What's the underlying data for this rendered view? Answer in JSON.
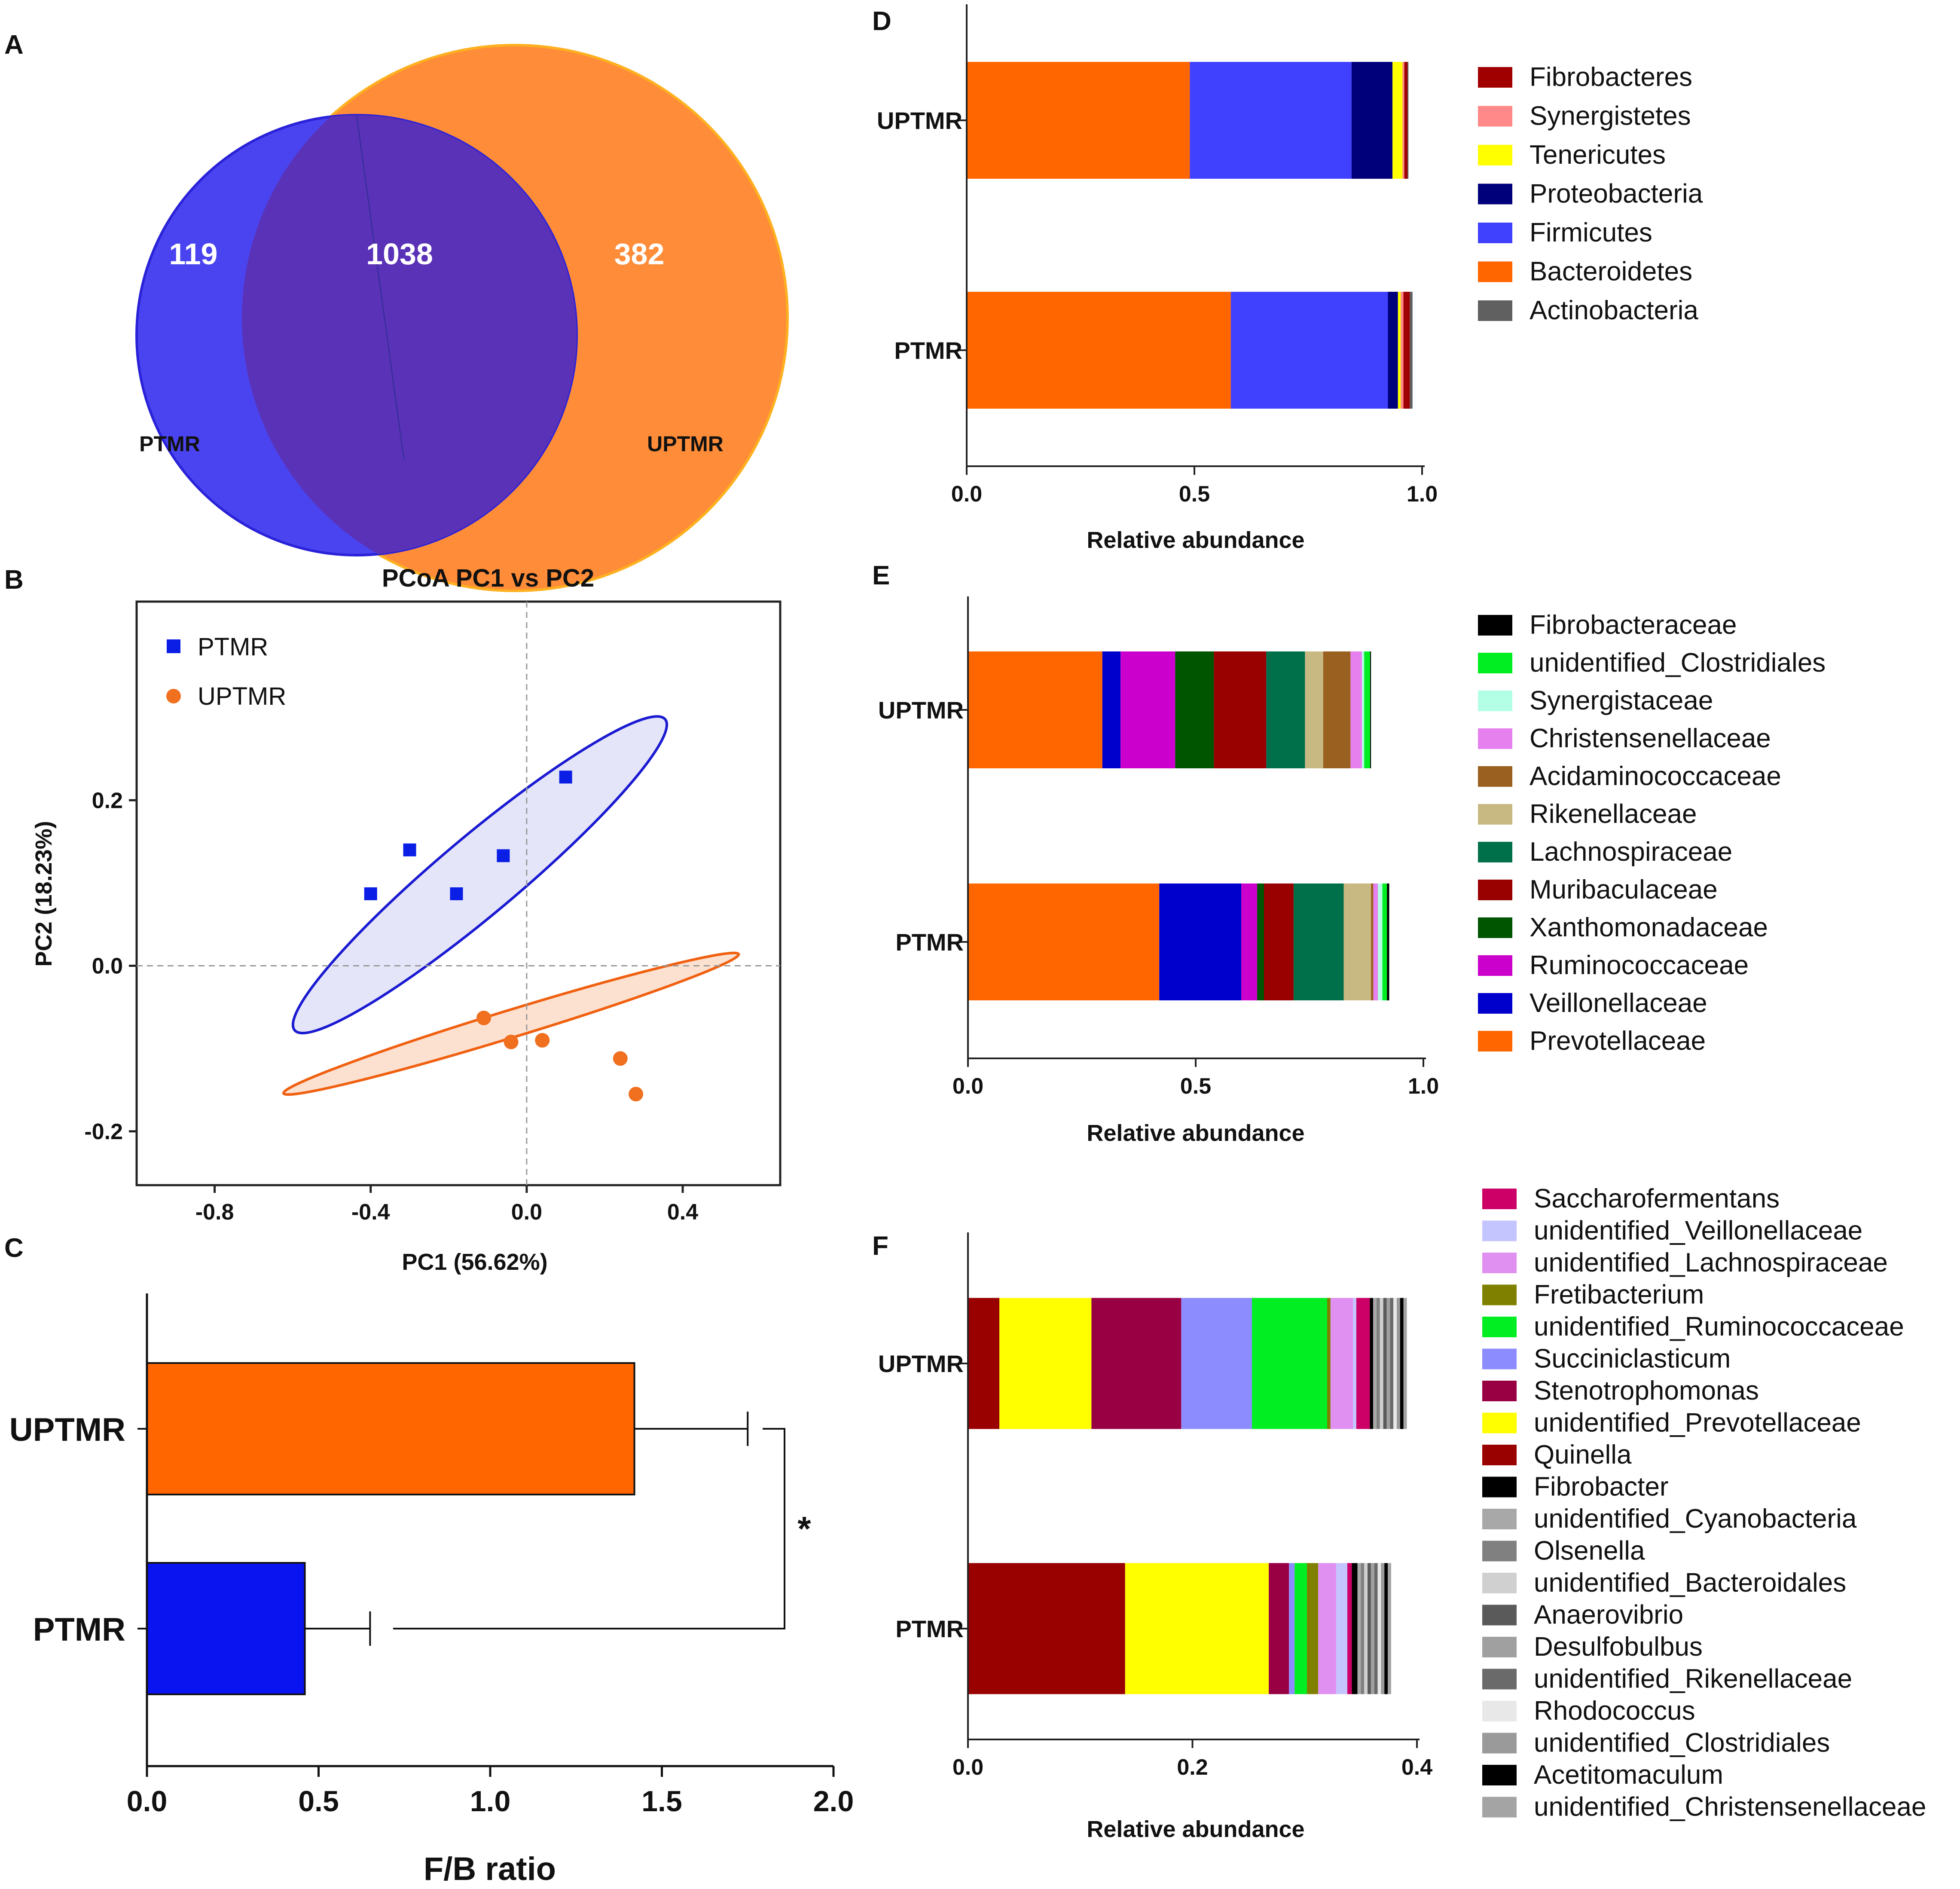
{
  "panels": {
    "A": "A",
    "B": "B",
    "C": "C",
    "D": "D",
    "E": "E",
    "F": "F"
  },
  "venn": {
    "left_label": "PTMR",
    "right_label": "UPTMR",
    "left_only": "119",
    "overlap": "1038",
    "right_only": "382",
    "left_color": "#4a44f0",
    "right_color": "#ff8c38",
    "overlap_color": "#5a32b8"
  },
  "chart_data": [
    {
      "id": "pcoa",
      "type": "scatter",
      "title": "PCoA PC1 vs PC2",
      "xlabel": "PC1 (56.62%)",
      "ylabel": "PC2 (18.23%)",
      "xlim": [
        -1.0,
        0.65
      ],
      "ylim": [
        -0.265,
        0.44
      ],
      "xticks": [
        -0.8,
        -0.4,
        0.0,
        0.4
      ],
      "xtick_labels": [
        "-0.8",
        "-0.4",
        "0.0",
        "0.4"
      ],
      "yticks": [
        -0.2,
        0.0,
        0.2
      ],
      "ytick_labels": [
        "-0.2",
        "0.0",
        "0.2"
      ],
      "series": [
        {
          "name": "PTMR",
          "color": "#0a1ee6",
          "marker": "square",
          "points": [
            [
              -0.4,
              0.087
            ],
            [
              -0.3,
              0.14
            ],
            [
              -0.18,
              0.087
            ],
            [
              -0.06,
              0.133
            ],
            [
              0.1,
              0.228
            ]
          ],
          "ellipse": {
            "cx": -0.12,
            "cy": 0.11,
            "rx": 0.62,
            "ry": 0.1,
            "angle_deg": 40.0,
            "fill": "#dcdcf8",
            "stroke": "#1a1ad2"
          }
        },
        {
          "name": "UPTMR",
          "color": "#f07020",
          "marker": "circle",
          "points": [
            [
              -0.11,
              -0.063
            ],
            [
              -0.04,
              -0.092
            ],
            [
              0.04,
              -0.09
            ],
            [
              0.24,
              -0.112
            ],
            [
              0.28,
              -0.155
            ]
          ],
          "ellipse": {
            "cx": -0.04,
            "cy": -0.07,
            "rx": 0.61,
            "ry": 0.035,
            "angle_deg": 17.0,
            "fill": "#fbd7c0",
            "stroke": "#f06010"
          }
        }
      ]
    },
    {
      "id": "fb_ratio",
      "type": "bar",
      "orientation": "horizontal",
      "categories": [
        "UPTMR",
        "PTMR"
      ],
      "values": [
        1.42,
        0.46
      ],
      "errors": [
        0.33,
        0.19
      ],
      "colors": [
        "#ff6600",
        "#0a14f0"
      ],
      "xlabel": "F/B ratio",
      "xlim": [
        0,
        2.0
      ],
      "xticks": [
        0.0,
        0.5,
        1.0,
        1.5,
        2.0
      ],
      "xtick_labels": [
        "0.0",
        "0.5",
        "1.0",
        "1.5",
        "2.0"
      ],
      "significance": "*"
    },
    {
      "id": "phylum",
      "type": "bar",
      "orientation": "horizontal",
      "stacked": true,
      "xlabel": "Relative abundance",
      "xlim": [
        0,
        1.0
      ],
      "xticks": [
        0.0,
        0.5,
        1.0
      ],
      "xtick_labels": [
        "0.0",
        "0.5",
        "1.0"
      ],
      "categories": [
        "UPTMR",
        "PTMR"
      ],
      "series": [
        {
          "name": "Bacteroidetes",
          "color": "#ff6600",
          "values": [
            0.49,
            0.58
          ]
        },
        {
          "name": "Firmicutes",
          "color": "#4040ff",
          "values": [
            0.355,
            0.345
          ]
        },
        {
          "name": "Proteobacteria",
          "color": "#00007a",
          "values": [
            0.09,
            0.022
          ]
        },
        {
          "name": "Tenericutes",
          "color": "#ffff00",
          "values": [
            0.022,
            0.006
          ]
        },
        {
          "name": "Synergistetes",
          "color": "#ff8888",
          "values": [
            0.004,
            0.006
          ]
        },
        {
          "name": "Fibrobacteres",
          "color": "#a00000",
          "values": [
            0.007,
            0.014
          ]
        },
        {
          "name": "Actinobacteria",
          "color": "#606060",
          "values": [
            0.002,
            0.006
          ]
        }
      ],
      "legend": [
        "Fibrobacteres",
        "Synergistetes",
        "Tenericutes",
        "Proteobacteria",
        "Firmicutes",
        "Bacteroidetes",
        "Actinobacteria"
      ]
    },
    {
      "id": "family",
      "type": "bar",
      "orientation": "horizontal",
      "stacked": true,
      "xlabel": "Relative abundance",
      "xlim": [
        0,
        1.0
      ],
      "xticks": [
        0.0,
        0.5,
        1.0
      ],
      "xtick_labels": [
        "0.0",
        "0.5",
        "1.0"
      ],
      "categories": [
        "UPTMR",
        "PTMR"
      ],
      "series": [
        {
          "name": "Prevotellaceae",
          "color": "#ff6600",
          "values": [
            0.295,
            0.42
          ]
        },
        {
          "name": "Veillonellaceae",
          "color": "#0000cc",
          "values": [
            0.04,
            0.18
          ]
        },
        {
          "name": "Ruminococcaceae",
          "color": "#cc00cc",
          "values": [
            0.12,
            0.035
          ]
        },
        {
          "name": "Xanthomonadaceae",
          "color": "#005500",
          "values": [
            0.085,
            0.015
          ]
        },
        {
          "name": "Muribaculaceae",
          "color": "#990000",
          "values": [
            0.115,
            0.065
          ]
        },
        {
          "name": "Lachnospiraceae",
          "color": "#00704a",
          "values": [
            0.085,
            0.11
          ]
        },
        {
          "name": "Rikenellaceae",
          "color": "#c8b882",
          "values": [
            0.04,
            0.06
          ]
        },
        {
          "name": "Acidaminococcaceae",
          "color": "#996020",
          "values": [
            0.06,
            0.005
          ]
        },
        {
          "name": "Christensenellaceae",
          "color": "#e680ee",
          "values": [
            0.025,
            0.01
          ]
        },
        {
          "name": "Synergistaceae",
          "color": "#b2ffe6",
          "values": [
            0.005,
            0.01
          ]
        },
        {
          "name": "unidentified_Clostridiales",
          "color": "#00ee22",
          "values": [
            0.013,
            0.01
          ]
        },
        {
          "name": "Fibrobacteraceae",
          "color": "#000000",
          "values": [
            0.002,
            0.005
          ]
        }
      ],
      "legend": [
        "Fibrobacteraceae",
        "unidentified_Clostridiales",
        "Synergistaceae",
        "Christensenellaceae",
        "Acidaminococcaceae",
        "Rikenellaceae",
        "Lachnospiraceae",
        "Muribaculaceae",
        "Xanthomonadaceae",
        "Ruminococcaceae",
        "Veillonellaceae",
        "Prevotellaceae"
      ]
    },
    {
      "id": "genus",
      "type": "bar",
      "orientation": "horizontal",
      "stacked": true,
      "xlabel": "Relative abundance",
      "xlim": [
        0,
        0.4
      ],
      "xticks": [
        0.0,
        0.2,
        0.4
      ],
      "xtick_labels": [
        "0.0",
        "0.2",
        "0.4"
      ],
      "categories": [
        "UPTMR",
        "PTMR"
      ],
      "series": [
        {
          "name": "Quinella",
          "color": "#990000",
          "values": [
            0.028,
            0.14
          ]
        },
        {
          "name": "unidentified_Prevotellaceae",
          "color": "#ffff00",
          "values": [
            0.082,
            0.128
          ]
        },
        {
          "name": "Stenotrophomonas",
          "color": "#990044",
          "values": [
            0.08,
            0.018
          ]
        },
        {
          "name": "Succiniclasticum",
          "color": "#8c8cff",
          "values": [
            0.063,
            0.005
          ]
        },
        {
          "name": "unidentified_Ruminococcaceae",
          "color": "#00ee22",
          "values": [
            0.067,
            0.011
          ]
        },
        {
          "name": "Fretibacterium",
          "color": "#808000",
          "values": [
            0.003,
            0.01
          ]
        },
        {
          "name": "unidentified_Lachnospiraceae",
          "color": "#e090f0",
          "values": [
            0.02,
            0.016
          ]
        },
        {
          "name": "unidentified_Veillonellaceae",
          "color": "#c4c4ff",
          "values": [
            0.003,
            0.01
          ]
        },
        {
          "name": "Saccharofermentans",
          "color": "#cc0066",
          "values": [
            0.012,
            0.004
          ]
        },
        {
          "name": "Fibrobacter",
          "color": "#000000",
          "values": [
            0.003,
            0.005
          ]
        },
        {
          "name": "unidentified_Cyanobacteria",
          "color": "#a8a8a8",
          "values": [
            0.003,
            0.003
          ]
        },
        {
          "name": "Olsenella",
          "color": "#808080",
          "values": [
            0.003,
            0.003
          ]
        },
        {
          "name": "unidentified_Bacteroidales",
          "color": "#d0d0d0",
          "values": [
            0.003,
            0.003
          ]
        },
        {
          "name": "Anaerovibrio",
          "color": "#5a5a5a",
          "values": [
            0.003,
            0.003
          ]
        },
        {
          "name": "Desulfobulbus",
          "color": "#a0a0a0",
          "values": [
            0.003,
            0.003
          ]
        },
        {
          "name": "unidentified_Rikenellaceae",
          "color": "#6a6a6a",
          "values": [
            0.003,
            0.003
          ]
        },
        {
          "name": "Rhodococcus",
          "color": "#e8e8e8",
          "values": [
            0.003,
            0.003
          ]
        },
        {
          "name": "unidentified_Clostridiales",
          "color": "#9a9a9a",
          "values": [
            0.003,
            0.003
          ]
        },
        {
          "name": "Acetitomaculum",
          "color": "#000000",
          "values": [
            0.003,
            0.003
          ]
        },
        {
          "name": "unidentified_Christensenellaceae",
          "color": "#a4a4a4",
          "values": [
            0.003,
            0.003
          ]
        }
      ],
      "legend": [
        "Saccharofermentans",
        "unidentified_Veillonellaceae",
        "unidentified_Lachnospiraceae",
        "Fretibacterium",
        "unidentified_Ruminococcaceae",
        "Succiniclasticum",
        "Stenotrophomonas",
        "unidentified_Prevotellaceae",
        "Quinella",
        "Fibrobacter",
        "unidentified_Cyanobacteria",
        "Olsenella",
        "unidentified_Bacteroidales",
        "Anaerovibrio",
        "Desulfobulbus",
        "unidentified_Rikenellaceae",
        "Rhodococcus",
        "unidentified_Clostridiales",
        "Acetitomaculum",
        "unidentified_Christensenellaceae"
      ]
    }
  ]
}
